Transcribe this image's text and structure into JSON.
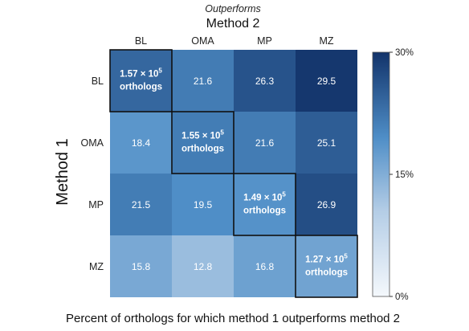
{
  "chart_data": {
    "type": "heatmap",
    "super_title": "Outperforms",
    "x_title": "Method 2",
    "y_title": "Method 1",
    "caption": "Percent of orthologs for which method 1 outperforms method 2",
    "columns": [
      "BL",
      "OMA",
      "MP",
      "MZ"
    ],
    "rows": [
      "BL",
      "OMA",
      "MP",
      "MZ"
    ],
    "values": [
      [
        null,
        21.6,
        26.3,
        29.5
      ],
      [
        18.4,
        null,
        21.6,
        25.1
      ],
      [
        21.5,
        19.5,
        null,
        26.9
      ],
      [
        15.8,
        12.8,
        16.8,
        null
      ]
    ],
    "diagonal": [
      {
        "mantissa": "1.57",
        "exponent": "5",
        "unit": "orthologs"
      },
      {
        "mantissa": "1.55",
        "exponent": "5",
        "unit": "orthologs"
      },
      {
        "mantissa": "1.49",
        "exponent": "5",
        "unit": "orthologs"
      },
      {
        "mantissa": "1.27",
        "exponent": "5",
        "unit": "orthologs"
      }
    ],
    "colorbar": {
      "range": [
        0,
        30
      ],
      "ticks": [
        {
          "value": 30,
          "label": "30%"
        },
        {
          "value": 15,
          "label": "15%"
        },
        {
          "value": 0,
          "label": "0%"
        }
      ],
      "colors": {
        "low": "#f4f8fc",
        "high": "#12336a"
      }
    }
  }
}
